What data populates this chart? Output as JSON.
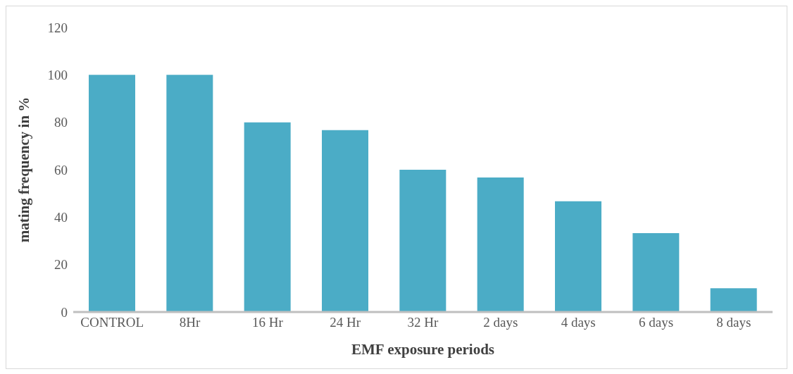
{
  "chart_data": {
    "type": "bar",
    "xlabel": "EMF exposure periods",
    "ylabel": "mating frequency in %",
    "categories": [
      "CONTROL",
      "8Hr",
      "16 Hr",
      "24 Hr",
      "32 Hr",
      "2 days",
      "4 days",
      "6 days",
      "8 days"
    ],
    "values": [
      100,
      100,
      80,
      76.7,
      60,
      56.7,
      46.7,
      33.3,
      10
    ],
    "color": "#4bacc6",
    "ylim": [
      0,
      120
    ],
    "yticks": [
      0,
      20,
      40,
      60,
      80,
      100,
      120
    ],
    "grid": false,
    "legend": false
  }
}
